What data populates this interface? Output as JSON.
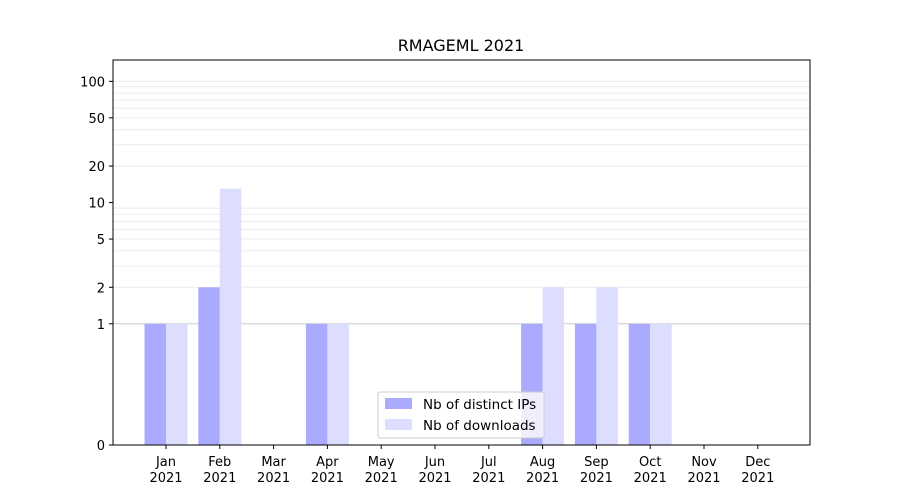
{
  "chart_data": {
    "type": "bar",
    "title": "RMAGEML 2021",
    "xlabel": "",
    "ylabel": "",
    "yscale": "symlog",
    "ylim": [
      0,
      150
    ],
    "yticks": [
      0,
      1,
      2,
      5,
      10,
      20,
      50,
      100
    ],
    "grid": true,
    "legend_position": "bottom-center",
    "categories": [
      "Jan\n2021",
      "Feb\n2021",
      "Mar\n2021",
      "Apr\n2021",
      "May\n2021",
      "Jun\n2021",
      "Jul\n2021",
      "Aug\n2021",
      "Sep\n2021",
      "Oct\n2021",
      "Nov\n2021",
      "Dec\n2021"
    ],
    "series": [
      {
        "name": "Nb of distinct IPs",
        "color": "#aaaaff",
        "values": [
          1,
          2,
          0,
          1,
          0,
          0,
          0,
          1,
          1,
          1,
          0,
          0
        ]
      },
      {
        "name": "Nb of downloads",
        "color": "#ddddff",
        "values": [
          1,
          13,
          0,
          1,
          0,
          0,
          0,
          2,
          2,
          1,
          0,
          0
        ]
      }
    ]
  }
}
